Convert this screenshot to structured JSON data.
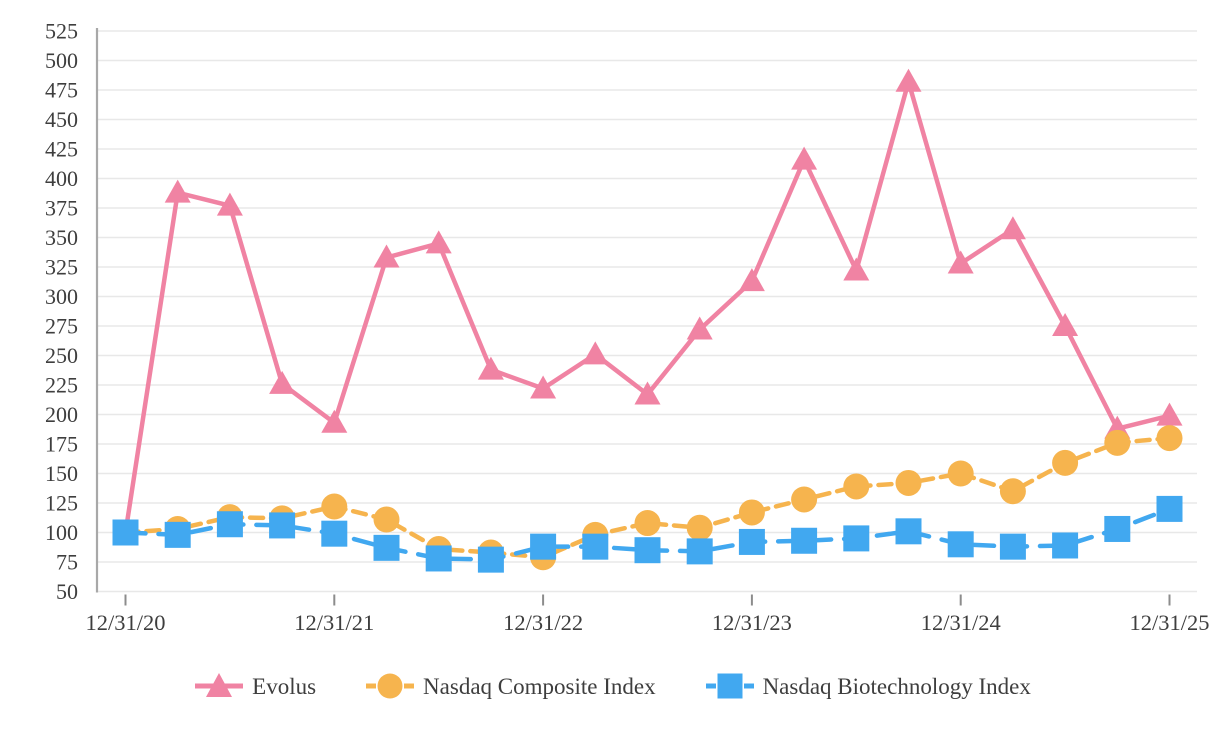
{
  "chart_data": {
    "type": "line",
    "title": "",
    "x_axis": {
      "tick_labels": [
        "12/31/20",
        "12/31/21",
        "12/31/22",
        "12/31/23",
        "12/31/24",
        "12/31/25"
      ],
      "tick_indices": [
        0,
        4,
        8,
        12,
        16,
        20
      ],
      "num_points": 21
    },
    "y_axis": {
      "min": 50,
      "max": 525,
      "tick_step": 25
    },
    "grid": "horizontal",
    "legend_position": "bottom",
    "colors": {
      "gridline": "#e8e8e8",
      "axis_line": "#a8a8a8",
      "tick_mark": "#8c8c8c",
      "label_text": "#3e3e3e"
    },
    "series": [
      {
        "name": "Evolus",
        "color": "#f083a3",
        "marker": "triangle",
        "line_style": "solid",
        "values": [
          100,
          388,
          377,
          226,
          193,
          333,
          345,
          238,
          222,
          251,
          217,
          272,
          313,
          416,
          322,
          482,
          328,
          357,
          275,
          188,
          199
        ]
      },
      {
        "name": "Nasdaq Composite Index",
        "color": "#f6b44e",
        "marker": "circle",
        "line_style": "dashed",
        "values": [
          100,
          103,
          113,
          112,
          122,
          111,
          86,
          83,
          79,
          98,
          108,
          104,
          117,
          128,
          139,
          142,
          150,
          135,
          159,
          176,
          180
        ]
      },
      {
        "name": "Nasdaq Biotechnology Index",
        "color": "#41a8f0",
        "marker": "square",
        "line_style": "dashed",
        "values": [
          100,
          98,
          107,
          106,
          99,
          87,
          78,
          77,
          88,
          88,
          85,
          84,
          92,
          93,
          95,
          101,
          90,
          88,
          89,
          103,
          120
        ]
      }
    ]
  }
}
